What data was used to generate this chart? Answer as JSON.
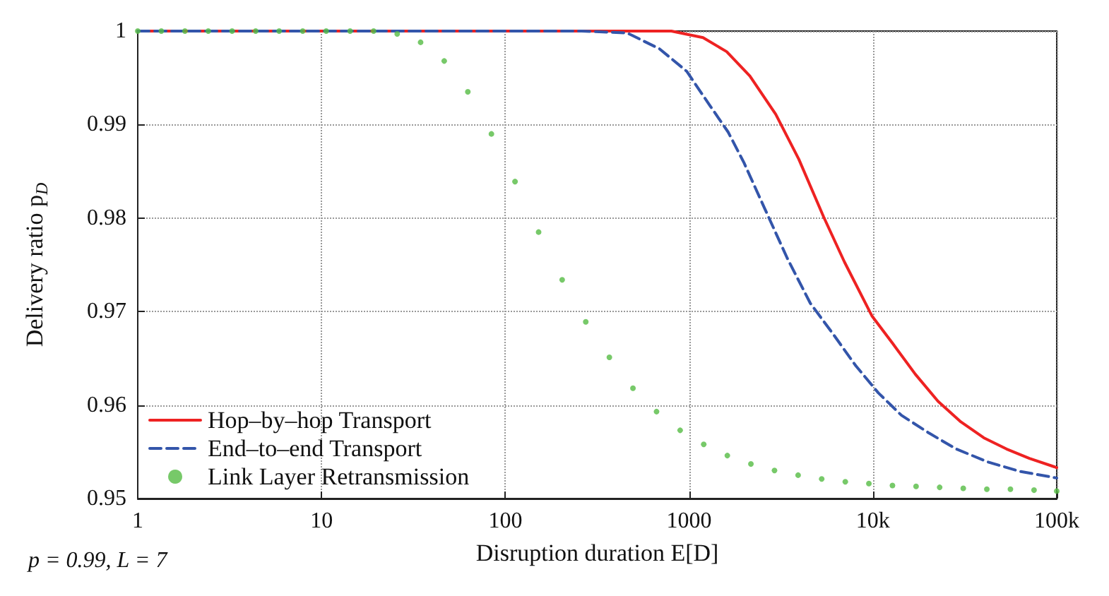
{
  "chart_data": {
    "type": "line",
    "xlabel": "Disruption duration E[D]",
    "ylabel": "Delivery ratio p$_{D}$",
    "log": "x",
    "grid": true,
    "legend": "bottom left",
    "xlim": [
      1,
      100000
    ],
    "xticks": [
      1,
      10,
      100,
      1000,
      {
        "value": 10000,
        "label": "10k"
      },
      {
        "value": 100000,
        "label": "100k"
      }
    ],
    "ylim": [
      0.95,
      1
    ],
    "yticks": [
      0.95,
      0.96,
      0.97,
      0.98,
      0.99,
      1
    ],
    "annotations": [
      "p = 0.99, L = 7"
    ],
    "series": [
      {
        "name": "Hop–by–hop Transport",
        "line_style": "solid",
        "color": "#ee2222",
        "x": [
          1,
          800,
          1190,
          1600,
          2140,
          2960,
          3950,
          5400,
          7000,
          9900,
          12800,
          17000,
          22600,
          30100,
          40100,
          53300,
          71000,
          97000,
          100000
        ],
        "values": [
          1,
          1,
          0.9993,
          0.9978,
          0.9952,
          0.9911,
          0.9863,
          0.9801,
          0.9753,
          0.9695,
          0.9666,
          0.9633,
          0.9604,
          0.9582,
          0.9565,
          0.9553,
          0.9543,
          0.9534,
          0.9533
        ]
      },
      {
        "name": "End–to–end Transport",
        "line_style": "dashed",
        "color": "#3355aa",
        "x": [
          1,
          260,
          460,
          690,
          970,
          1290,
          1630,
          1990,
          2580,
          3420,
          4560,
          6070,
          8070,
          10700,
          14300,
          20200,
          28400,
          42400,
          63200,
          100000
        ],
        "values": [
          1,
          1,
          0.9998,
          0.9981,
          0.9957,
          0.9921,
          0.9892,
          0.9859,
          0.981,
          0.9757,
          0.9709,
          0.9676,
          0.9642,
          0.9613,
          0.9589,
          0.957,
          0.9553,
          0.9539,
          0.9529,
          0.9522
        ]
      },
      {
        "name": "Link Layer Retransmission",
        "type": "scatter",
        "marker": "circle",
        "color": "#55bb44",
        "x": [
          1,
          1.344,
          1.806,
          2.42,
          3.26,
          4.38,
          5.88,
          7.9,
          10.6,
          14.3,
          19.2,
          25.8,
          34.6,
          46.5,
          62.5,
          84,
          112.9,
          151.7,
          203.8,
          273.9,
          368.1,
          494.7,
          664.8,
          893.4,
          1200.6,
          1613.5,
          2168,
          2914,
          3916,
          5263,
          7073,
          9505,
          12774,
          17166,
          23069,
          31003,
          41664,
          55990,
          75244,
          100000
        ],
        "values": [
          1,
          1,
          1,
          1,
          1,
          1,
          1,
          1,
          1,
          1,
          1,
          0.9997,
          0.9988,
          0.9968,
          0.9935,
          0.989,
          0.9839,
          0.9785,
          0.9734,
          0.9689,
          0.9651,
          0.9618,
          0.9593,
          0.9573,
          0.9558,
          0.9546,
          0.9537,
          0.953,
          0.9525,
          0.9521,
          0.9518,
          0.9516,
          0.9514,
          0.9513,
          0.9512,
          0.9511,
          0.951,
          0.951,
          0.9509,
          0.9508
        ]
      }
    ]
  }
}
